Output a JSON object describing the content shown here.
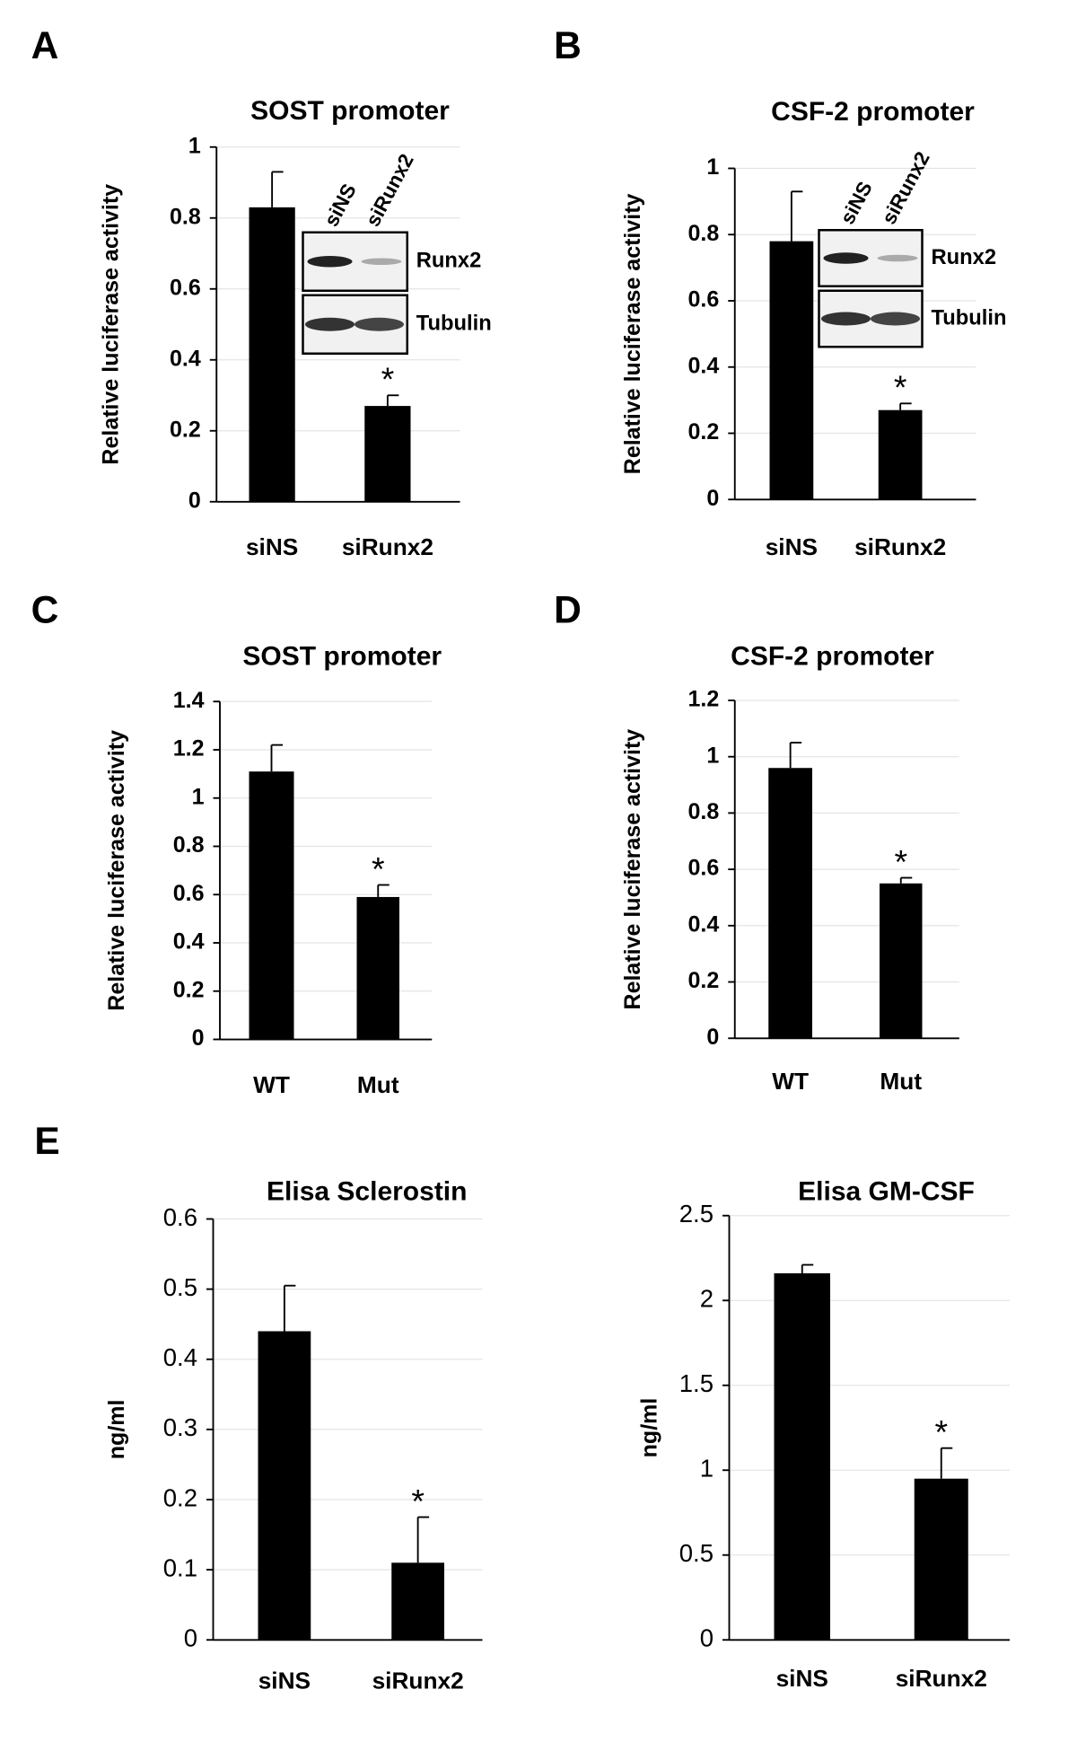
{
  "chart_data": [
    {
      "type": "bar",
      "panel": "A",
      "title": "SOST promoter",
      "ylabel": "Relative luciferase activity",
      "categories": [
        "siNS",
        "siRunx2"
      ],
      "values": [
        0.83,
        0.27
      ],
      "errors": [
        0.1,
        0.03
      ],
      "color": "#000000",
      "ylim": [
        0,
        1
      ],
      "yticks": [
        0,
        0.2,
        0.4,
        0.6,
        0.8,
        1
      ],
      "grid": true,
      "annotations": [
        {
          "text": "*",
          "category": "siRunx2"
        }
      ],
      "inset": {
        "lanes": [
          "siNS",
          "siRunx2"
        ],
        "bands": [
          "Runx2",
          "Tubulin"
        ]
      }
    },
    {
      "type": "bar",
      "panel": "B",
      "title": "CSF-2 promoter",
      "ylabel": "Relative luciferase activity",
      "categories": [
        "siNS",
        "siRunx2"
      ],
      "values": [
        0.78,
        0.27
      ],
      "errors": [
        0.15,
        0.02
      ],
      "color": "#000000",
      "ylim": [
        0,
        1
      ],
      "yticks": [
        0,
        0.2,
        0.4,
        0.6,
        0.8,
        1
      ],
      "grid": true,
      "annotations": [
        {
          "text": "*",
          "category": "siRunx2"
        }
      ],
      "inset": {
        "lanes": [
          "siNS",
          "siRunx2"
        ],
        "bands": [
          "Runx2",
          "Tubulin"
        ]
      }
    },
    {
      "type": "bar",
      "panel": "C",
      "title": "SOST promoter",
      "ylabel": "Relative luciferase activity",
      "categories": [
        "WT",
        "Mut"
      ],
      "values": [
        1.11,
        0.59
      ],
      "errors": [
        0.11,
        0.05
      ],
      "color": "#000000",
      "ylim": [
        0,
        1.4
      ],
      "yticks": [
        0,
        0.2,
        0.4,
        0.6,
        0.8,
        1,
        1.2,
        1.4
      ],
      "grid": true,
      "annotations": [
        {
          "text": "*",
          "category": "Mut"
        }
      ]
    },
    {
      "type": "bar",
      "panel": "D",
      "title": "CSF-2 promoter",
      "ylabel": "Relative luciferase activity",
      "categories": [
        "WT",
        "Mut"
      ],
      "values": [
        0.96,
        0.55
      ],
      "errors": [
        0.09,
        0.02
      ],
      "color": "#000000",
      "ylim": [
        0,
        1.2
      ],
      "yticks": [
        0,
        0.2,
        0.4,
        0.6,
        0.8,
        1,
        1.2
      ],
      "grid": true,
      "annotations": [
        {
          "text": "*",
          "category": "Mut"
        }
      ]
    },
    {
      "type": "bar",
      "panel": "E",
      "title": "Elisa Sclerostin",
      "ylabel": "ng/ml",
      "categories": [
        "siNS",
        "siRunx2"
      ],
      "values": [
        0.44,
        0.11
      ],
      "errors": [
        0.065,
        0.065
      ],
      "color": "#000000",
      "ylim": [
        0,
        0.6
      ],
      "yticks": [
        0,
        0.1,
        0.2,
        0.3,
        0.4,
        0.5,
        0.6
      ],
      "grid": true,
      "annotations": [
        {
          "text": "*",
          "category": "siRunx2"
        }
      ]
    },
    {
      "type": "bar",
      "title": "Elisa GM-CSF",
      "ylabel": "ng/ml",
      "categories": [
        "siNS",
        "siRunx2"
      ],
      "values": [
        2.16,
        0.95
      ],
      "errors": [
        0.05,
        0.18
      ],
      "color": "#000000",
      "ylim": [
        0,
        2.5
      ],
      "yticks": [
        0,
        0.5,
        1,
        1.5,
        2,
        2.5
      ],
      "grid": true,
      "annotations": [
        {
          "text": "*",
          "category": "siRunx2"
        }
      ]
    }
  ]
}
